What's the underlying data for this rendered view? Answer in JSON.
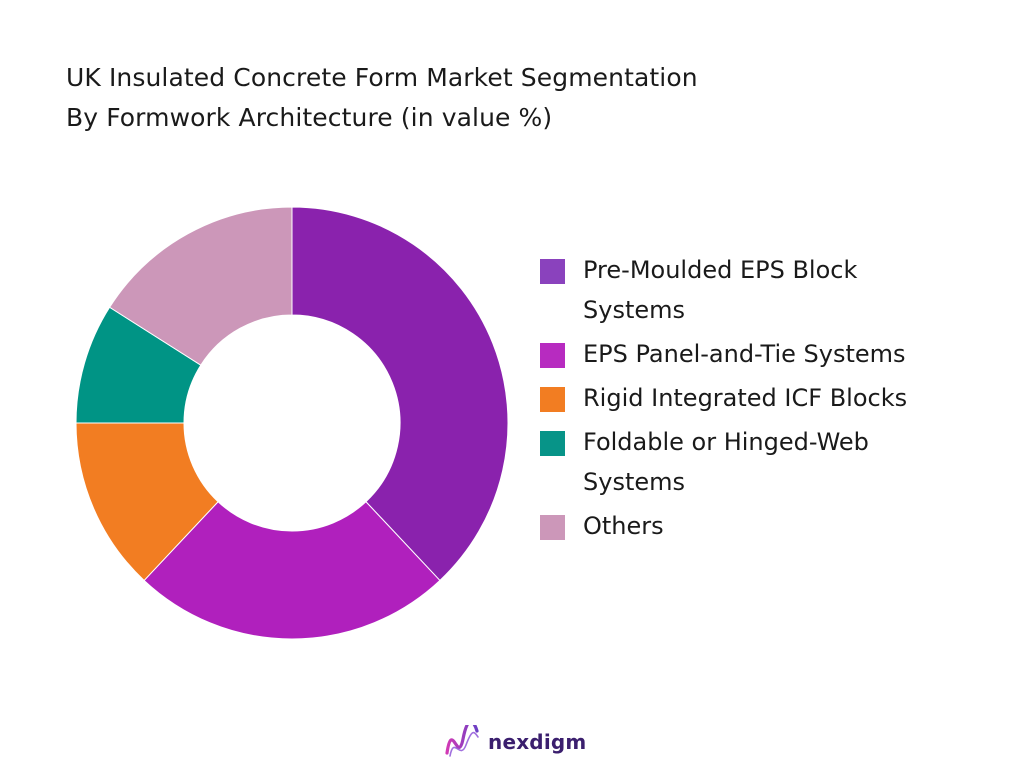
{
  "title": {
    "line1": "UK Insulated Concrete Form Market Segmentation",
    "line2": "By Formwork Architecture (in value %)"
  },
  "chart_data": {
    "type": "pie",
    "variant": "donut",
    "title": "UK Insulated Concrete Form Market Segmentation By Formwork Architecture (in value %)",
    "unit": "%",
    "categories": [
      "Pre-Moulded EPS Block Systems",
      "EPS Panel-and-Tie Systems",
      "Rigid Integrated ICF Blocks",
      "Foldable or Hinged-Web Systems",
      "Others"
    ],
    "values": [
      38,
      24,
      13,
      9,
      16
    ],
    "colors": [
      "#8a22ad",
      "#b020bd",
      "#f27d22",
      "#009485",
      "#cc97b9"
    ],
    "legend_position": "right"
  },
  "legend": [
    {
      "line1": "Pre-Moulded EPS Block",
      "line2": "Systems",
      "color": "#8a42bd"
    },
    {
      "line1": "EPS Panel-and-Tie Systems",
      "line2": "",
      "color": "#b72bc0"
    },
    {
      "line1": "Rigid Integrated ICF Blocks",
      "line2": "",
      "color": "#f27d22"
    },
    {
      "line1": "Foldable or Hinged-Web",
      "line2": "Systems",
      "color": "#079488"
    },
    {
      "line1": "Others",
      "line2": "",
      "color": "#cc97b9"
    }
  ],
  "brand": {
    "name": "nexdigm",
    "logo_icon": "nexdigm-wave-logo-icon",
    "color": "#3b1f6e"
  }
}
